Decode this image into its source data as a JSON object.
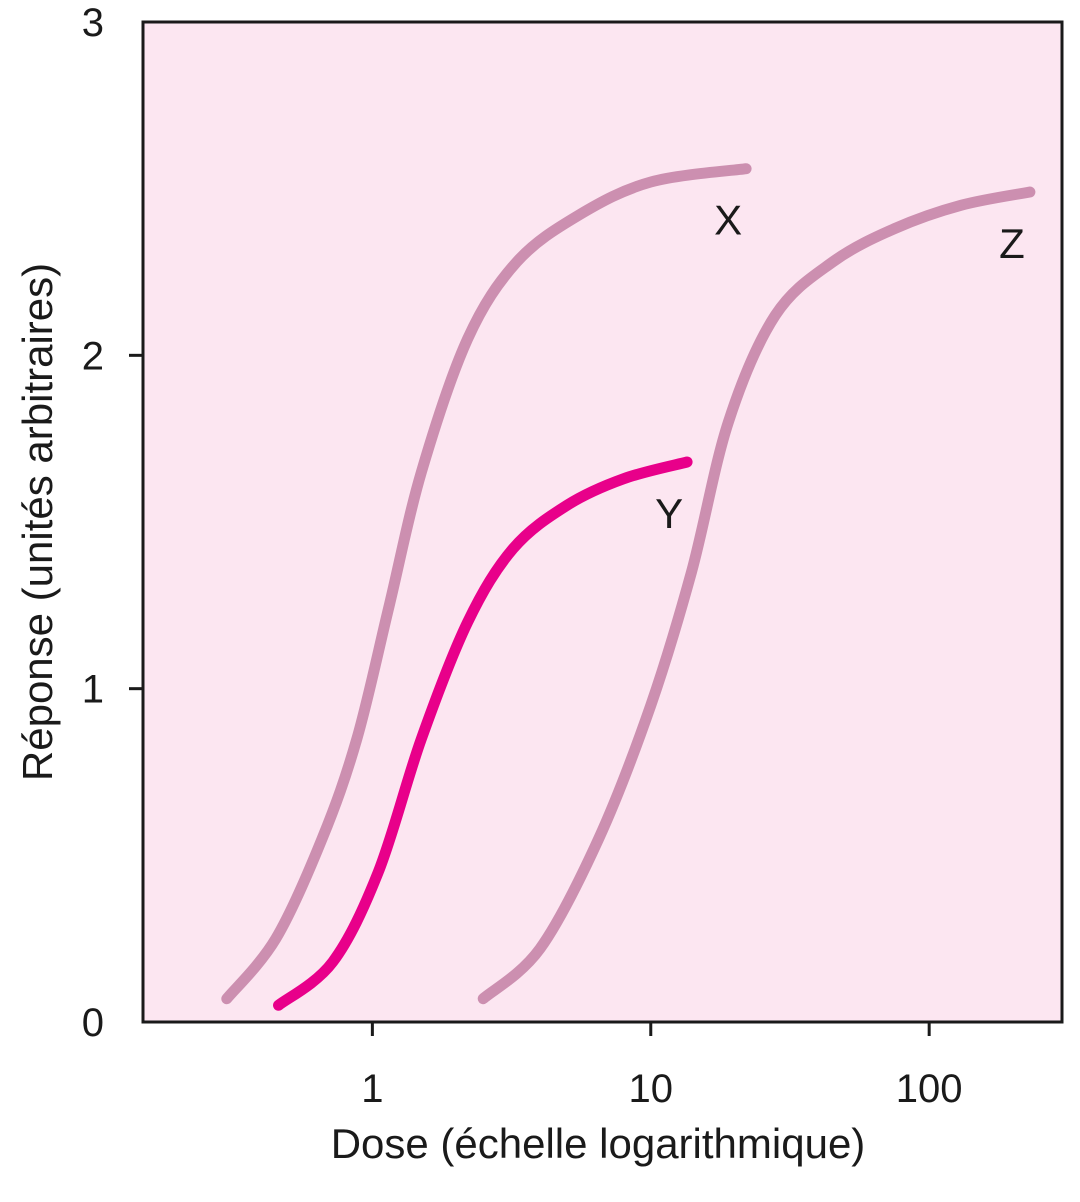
{
  "chart_data": {
    "type": "line",
    "xlabel": "Dose (échelle logarithmique)",
    "ylabel": "Réponse (unités arbitraires)",
    "x_scale": "log",
    "xlim": [
      0.15,
      300
    ],
    "ylim": [
      0,
      3
    ],
    "x_ticks": [
      1,
      10,
      100
    ],
    "x_tick_labels": [
      "1",
      "10",
      "100"
    ],
    "y_ticks": [
      0,
      1,
      2,
      3
    ],
    "y_tick_labels": [
      "0",
      "1",
      "2",
      "3"
    ],
    "grid": false,
    "background_color": "#fce6f1",
    "series": [
      {
        "name": "X",
        "color": "#cc8fb0",
        "points": [
          [
            0.3,
            0.07
          ],
          [
            0.45,
            0.25
          ],
          [
            0.66,
            0.55
          ],
          [
            0.88,
            0.85
          ],
          [
            1.15,
            1.25
          ],
          [
            1.5,
            1.65
          ],
          [
            2.2,
            2.05
          ],
          [
            3.3,
            2.28
          ],
          [
            5.5,
            2.42
          ],
          [
            10,
            2.52
          ],
          [
            22,
            2.56
          ]
        ]
      },
      {
        "name": "Y",
        "color": "#e8008a",
        "points": [
          [
            0.46,
            0.05
          ],
          [
            0.72,
            0.18
          ],
          [
            1.05,
            0.45
          ],
          [
            1.5,
            0.85
          ],
          [
            2.2,
            1.2
          ],
          [
            3.2,
            1.42
          ],
          [
            5,
            1.55
          ],
          [
            8,
            1.63
          ],
          [
            13.5,
            1.68
          ]
        ]
      },
      {
        "name": "Z",
        "color": "#cc8fb0",
        "points": [
          [
            2.5,
            0.07
          ],
          [
            4,
            0.22
          ],
          [
            6.5,
            0.55
          ],
          [
            10,
            0.95
          ],
          [
            14,
            1.35
          ],
          [
            19,
            1.8
          ],
          [
            28,
            2.12
          ],
          [
            45,
            2.28
          ],
          [
            75,
            2.38
          ],
          [
            130,
            2.45
          ],
          [
            230,
            2.49
          ]
        ]
      }
    ]
  }
}
